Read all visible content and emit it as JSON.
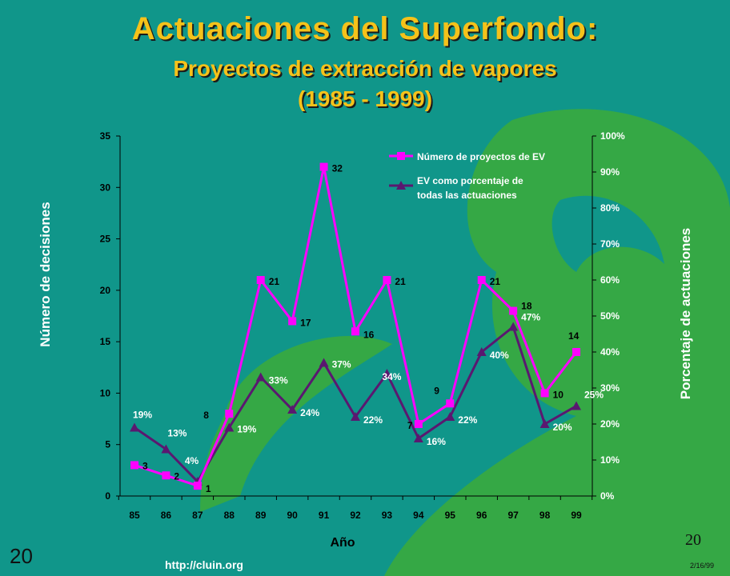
{
  "slide": {
    "title": "Actuaciones del Superfondo:",
    "subtitle_line1": "Proyectos de extracción de vapores",
    "subtitle_line2": "(1985 - 1999)",
    "page_number_left": "20",
    "page_number_right": "20",
    "url": "http://cluin.org",
    "date": "2/16/99"
  },
  "colors": {
    "background": "#10968a",
    "title": "#f5c21a",
    "series_count": "#ff00ff",
    "series_pct": "#5a1870",
    "decor_green": "#35a845"
  },
  "chart_data": {
    "type": "line",
    "xlabel": "Año",
    "ylabel_left": "Número de decisiones",
    "ylabel_right": "Porcentaje de actuaciones",
    "categories": [
      "85",
      "86",
      "87",
      "88",
      "89",
      "90",
      "91",
      "92",
      "93",
      "94",
      "95",
      "96",
      "97",
      "98",
      "99"
    ],
    "ylim_left": [
      0,
      35
    ],
    "yticks_left": [
      "0",
      "5",
      "10",
      "15",
      "20",
      "25",
      "30",
      "35"
    ],
    "ylim_right": [
      0,
      100
    ],
    "yticks_right": [
      "0%",
      "10%",
      "20%",
      "30%",
      "40%",
      "50%",
      "60%",
      "70%",
      "80%",
      "90%",
      "100%"
    ],
    "grid": false,
    "legend_position": "top-right",
    "series": [
      {
        "name": "Número de proyectos de EV",
        "axis": "left",
        "marker": "square",
        "values": [
          3,
          2,
          1,
          8,
          21,
          17,
          32,
          16,
          21,
          7,
          9,
          21,
          18,
          10,
          14
        ],
        "labels": [
          "3",
          "2",
          "1",
          "8",
          "21",
          "17",
          "32",
          "16",
          "21",
          "7",
          "9",
          "21",
          "18",
          "10",
          "14"
        ]
      },
      {
        "name": "EV como porcentaje de todas las actuaciones",
        "legend_line1": "EV como porcentaje de",
        "legend_line2": "todas las actuaciones",
        "axis": "right",
        "marker": "triangle",
        "values": [
          19,
          13,
          4,
          19,
          33,
          24,
          37,
          22,
          34,
          16,
          22,
          40,
          47,
          20,
          25
        ],
        "labels": [
          "19%",
          "13%",
          "4%",
          "19%",
          "33%",
          "24%",
          "37%",
          "22%",
          "34%",
          "16%",
          "22%",
          "40%",
          "47%",
          "20%",
          "25%"
        ]
      }
    ]
  }
}
